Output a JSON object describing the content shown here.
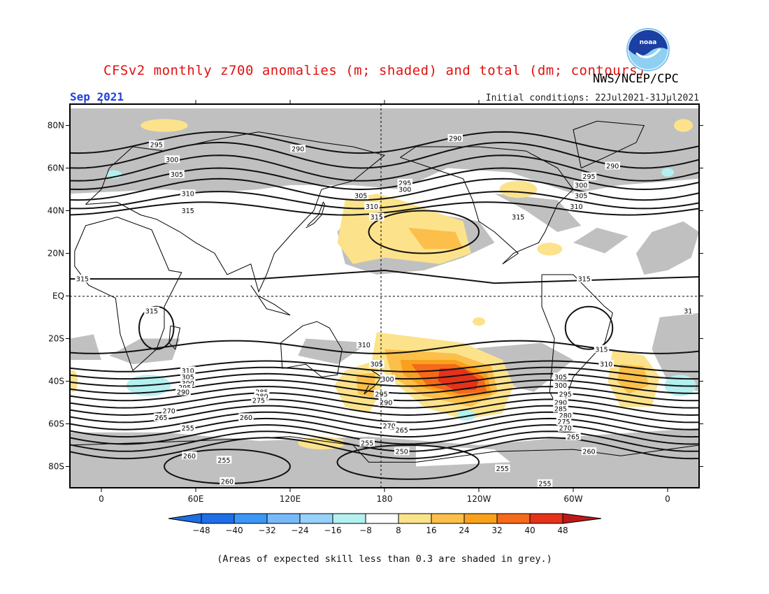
{
  "header": {
    "title": "CFSv2 monthly z700 anomalies (m; shaded) and total (dm; contours)",
    "month": "Sep 2021",
    "initial_conditions": "Initial conditions: 22Jul2021-31Jul2021",
    "agency": "NWS/NCEP/CPC",
    "logo_text": "noaa"
  },
  "footer": {
    "note": "(Areas of expected skill less than 0.3 are shaded in grey.)"
  },
  "colors": {
    "grey": "#c0c0c0",
    "pos8": "#fce38b",
    "pos16": "#fbbf4a",
    "pos24": "#f9a11d",
    "pos32": "#f5691a",
    "pos40": "#e4321b",
    "pos48": "#c01818",
    "neg8": "#b4f0f0",
    "neg16": "#96d2fa",
    "neg24": "#78b9fa",
    "neg32": "#3c96f5",
    "neg40": "#1e6ee6"
  },
  "chart_data": {
    "type": "heatmap",
    "title": "CFSv2 monthly z700 anomalies (m; shaded) and total (dm; contours)",
    "projection": "lat-lon, centered on 180",
    "x_axis": {
      "ticks": [
        "0",
        "60E",
        "120E",
        "180",
        "120W",
        "60W",
        "0"
      ],
      "tick_lon": [
        0,
        60,
        120,
        180,
        240,
        300,
        360
      ],
      "range": [
        -20,
        380
      ]
    },
    "y_axis": {
      "ticks": [
        "80N",
        "60N",
        "40N",
        "20N",
        "EQ",
        "20S",
        "40S",
        "60S",
        "80S"
      ],
      "tick_lat": [
        80,
        60,
        40,
        20,
        0,
        -20,
        -40,
        -60,
        -80
      ],
      "range": [
        -90,
        90
      ]
    },
    "colorbar": {
      "labels": [
        "-48",
        "-40",
        "-32",
        "-24",
        "-16",
        "-8",
        "8",
        "16",
        "24",
        "32",
        "40",
        "48"
      ],
      "units": "m"
    },
    "contour_labels": [
      {
        "v": "295",
        "lon": 35,
        "lat": 71
      },
      {
        "v": "300",
        "lon": 45,
        "lat": 64
      },
      {
        "v": "305",
        "lon": 48,
        "lat": 57
      },
      {
        "v": "310",
        "lon": 55,
        "lat": 48
      },
      {
        "v": "315",
        "lon": 55,
        "lat": 40
      },
      {
        "v": "290",
        "lon": 125,
        "lat": 69
      },
      {
        "v": "305",
        "lon": 165,
        "lat": 47
      },
      {
        "v": "310",
        "lon": 172,
        "lat": 42
      },
      {
        "v": "315",
        "lon": 175,
        "lat": 37
      },
      {
        "v": "295",
        "lon": 193,
        "lat": 53
      },
      {
        "v": "300",
        "lon": 193,
        "lat": 50
      },
      {
        "v": "290",
        "lon": 225,
        "lat": 74
      },
      {
        "v": "290",
        "lon": 325,
        "lat": 61
      },
      {
        "v": "295",
        "lon": 310,
        "lat": 56
      },
      {
        "v": "300",
        "lon": 305,
        "lat": 52
      },
      {
        "v": "305",
        "lon": 305,
        "lat": 47
      },
      {
        "v": "310",
        "lon": 302,
        "lat": 42
      },
      {
        "v": "315",
        "lon": 265,
        "lat": 37
      },
      {
        "v": "315",
        "lon": -12,
        "lat": 8
      },
      {
        "v": "315",
        "lon": 307,
        "lat": 8
      },
      {
        "v": "315",
        "lon": 32,
        "lat": -7
      },
      {
        "v": "31",
        "lon": 373,
        "lat": -7
      },
      {
        "v": "310",
        "lon": 167,
        "lat": -23
      },
      {
        "v": "315",
        "lon": 318,
        "lat": -25
      },
      {
        "v": "310",
        "lon": 321,
        "lat": -32
      },
      {
        "v": "310",
        "lon": 55,
        "lat": -35
      },
      {
        "v": "305",
        "lon": 55,
        "lat": -38
      },
      {
        "v": "300",
        "lon": 55,
        "lat": -41
      },
      {
        "v": "295",
        "lon": 53,
        "lat": -43
      },
      {
        "v": "290",
        "lon": 52,
        "lat": -45
      },
      {
        "v": "305",
        "lon": 175,
        "lat": -32
      },
      {
        "v": "300",
        "lon": 182,
        "lat": -39
      },
      {
        "v": "295",
        "lon": 178,
        "lat": -46
      },
      {
        "v": "290",
        "lon": 181,
        "lat": -50
      },
      {
        "v": "285",
        "lon": 102,
        "lat": -45
      },
      {
        "v": "280",
        "lon": 102,
        "lat": -47
      },
      {
        "v": "275",
        "lon": 100,
        "lat": -49
      },
      {
        "v": "270",
        "lon": 43,
        "lat": -54
      },
      {
        "v": "265",
        "lon": 38,
        "lat": -57
      },
      {
        "v": "260",
        "lon": 92,
        "lat": -57
      },
      {
        "v": "255",
        "lon": 55,
        "lat": -62
      },
      {
        "v": "270",
        "lon": 183,
        "lat": -61
      },
      {
        "v": "265",
        "lon": 191,
        "lat": -63
      },
      {
        "v": "255",
        "lon": 169,
        "lat": -69
      },
      {
        "v": "250",
        "lon": 191,
        "lat": -73
      },
      {
        "v": "260",
        "lon": 56,
        "lat": -75
      },
      {
        "v": "255",
        "lon": 78,
        "lat": -77
      },
      {
        "v": "260",
        "lon": 80,
        "lat": -87
      },
      {
        "v": "255",
        "lon": 255,
        "lat": -81
      },
      {
        "v": "255",
        "lon": 282,
        "lat": -88
      },
      {
        "v": "305",
        "lon": 292,
        "lat": -38
      },
      {
        "v": "300",
        "lon": 292,
        "lat": -42
      },
      {
        "v": "295",
        "lon": 295,
        "lat": -46
      },
      {
        "v": "290",
        "lon": 292,
        "lat": -50
      },
      {
        "v": "285",
        "lon": 292,
        "lat": -53
      },
      {
        "v": "280",
        "lon": 295,
        "lat": -56
      },
      {
        "v": "275",
        "lon": 294,
        "lat": -59
      },
      {
        "v": "270",
        "lon": 295,
        "lat": -62
      },
      {
        "v": "265",
        "lon": 300,
        "lat": -66
      },
      {
        "v": "260",
        "lon": 310,
        "lat": -73
      }
    ],
    "contour_levels": [
      250,
      255,
      260,
      265,
      270,
      275,
      280,
      285,
      290,
      295,
      300,
      305,
      310,
      315
    ],
    "anomaly_regions": [
      {
        "desc": "South Pacific positive center",
        "lon": [
          200,
          240
        ],
        "lat": [
          -45,
          -30
        ],
        "max_m": 40
      },
      {
        "desc": "Southern Pacific near Antarctica",
        "lon": [
          225,
          238
        ],
        "lat": [
          -60,
          -52
        ],
        "min_m": -16
      },
      {
        "desc": "Western South Atlantic",
        "lon": [
          335,
          365
        ],
        "lat": [
          -50,
          -25
        ],
        "max_m": 16
      },
      {
        "desc": "North Pacific",
        "lon": [
          160,
          210
        ],
        "lat": [
          15,
          45
        ],
        "max_m": 16
      }
    ],
    "grid": true
  }
}
